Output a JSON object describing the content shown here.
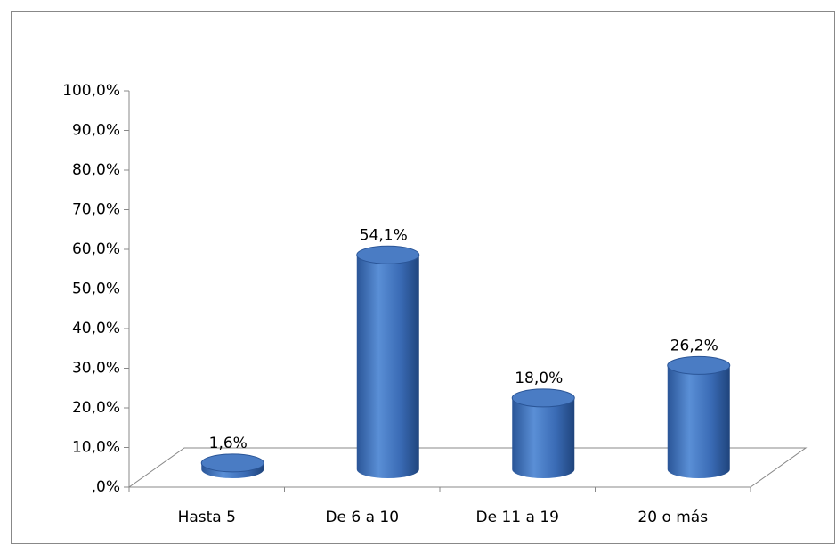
{
  "chart_data": {
    "type": "bar",
    "categories": [
      "Hasta 5",
      "De 6 a 10",
      "De 11 a 19",
      "20 o más"
    ],
    "values": [
      1.6,
      54.1,
      18.0,
      26.2
    ],
    "value_labels": [
      "1,6%",
      "54,1%",
      "18,0%",
      "26,2%"
    ],
    "color": "#3e6fb8",
    "ylim": [
      0,
      100
    ],
    "yticks": [
      {
        "value": 0,
        "label": ",0%"
      },
      {
        "value": 10,
        "label": "10,0%"
      },
      {
        "value": 20,
        "label": "20,0%"
      },
      {
        "value": 30,
        "label": "30,0%"
      },
      {
        "value": 40,
        "label": "40,0%"
      },
      {
        "value": 50,
        "label": "50,0%"
      },
      {
        "value": 60,
        "label": "60,0%"
      },
      {
        "value": 70,
        "label": "70,0%"
      },
      {
        "value": 80,
        "label": "80,0%"
      },
      {
        "value": 90,
        "label": "90,0%"
      },
      {
        "value": 100,
        "label": "100,0%"
      }
    ],
    "grid": false
  }
}
